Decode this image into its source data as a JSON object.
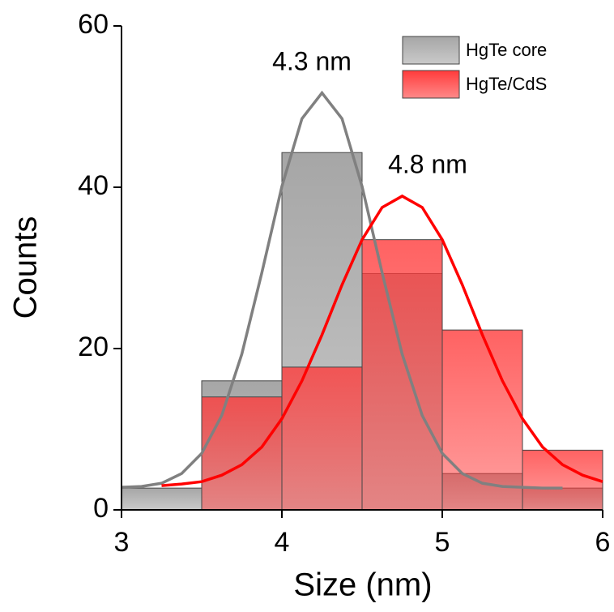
{
  "chart_data": {
    "type": "histogram",
    "xlabel": "Size (nm)",
    "ylabel": "Counts",
    "bins": [
      3,
      3.5,
      4,
      4.5,
      5,
      5.5,
      6
    ],
    "series": [
      {
        "name": "HgTe core",
        "color": "#a6a6a6",
        "values": [
          2.7,
          16,
          44.3,
          29.3,
          4.5,
          2.7
        ]
      },
      {
        "name": "HgTe/CdS",
        "color": "#ff3b3b",
        "values": [
          0,
          14,
          17.7,
          33.5,
          22.3,
          7.4
        ]
      }
    ],
    "fits": [
      {
        "color": "#808080",
        "x": [
          3,
          3.125,
          3.25,
          3.375,
          3.5,
          3.625,
          3.75,
          3.875,
          4,
          4.125,
          4.25,
          4.375,
          4.5,
          4.625,
          4.75,
          4.875,
          5,
          5.125,
          5.25,
          5.375,
          5.5,
          5.625,
          5.75
        ],
        "values": [
          2.8,
          2.9,
          3.3,
          4.5,
          7.0,
          11.7,
          19.3,
          29.4,
          40.1,
          48.5,
          51.7,
          48.5,
          40.1,
          29.4,
          19.3,
          11.7,
          7.0,
          4.5,
          3.3,
          2.9,
          2.8,
          2.7,
          2.7
        ]
      },
      {
        "color": "#ff0000",
        "x": [
          3.25,
          3.375,
          3.5,
          3.625,
          3.75,
          3.875,
          4,
          4.125,
          4.25,
          4.375,
          4.5,
          4.625,
          4.75,
          4.875,
          5,
          5.125,
          5.25,
          5.375,
          5.5,
          5.625,
          5.75,
          5.875,
          6
        ],
        "values": [
          3.0,
          3.2,
          3.5,
          4.3,
          5.6,
          7.8,
          11.3,
          16.0,
          21.7,
          27.9,
          33.5,
          37.5,
          38.9,
          37.5,
          33.5,
          27.9,
          21.7,
          16.0,
          11.3,
          7.8,
          5.6,
          4.3,
          3.5
        ]
      }
    ],
    "annotations": [
      "4.3 nm",
      "4.8 nm"
    ],
    "xlim": [
      3,
      6
    ],
    "ylim": [
      0,
      60
    ],
    "xticks": [
      3,
      4,
      5,
      6
    ],
    "yticks": [
      0,
      20,
      40,
      60
    ],
    "legend": "upper right"
  }
}
